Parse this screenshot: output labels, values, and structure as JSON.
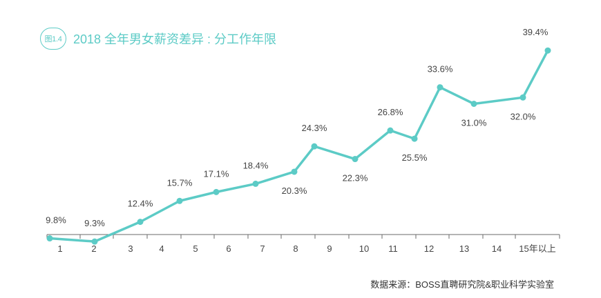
{
  "header": {
    "figure_label": "图1.4",
    "title": "2018 全年男女薪资差异 : 分工作年限"
  },
  "source": "数据来源：BOSS直聘研究院&职业科学实验室",
  "colors": {
    "accent": "#5ccbc6",
    "axis": "#6a6a6a",
    "text": "#444444"
  },
  "chart_data": {
    "type": "line",
    "title": "2018 全年男女薪资差异 : 分工作年限",
    "xlabel": "",
    "ylabel": "",
    "ylim": [
      0,
      45
    ],
    "grid": false,
    "categories": [
      "1",
      "2",
      "3",
      "4",
      "5",
      "6",
      "7",
      "8",
      "9",
      "10",
      "11",
      "12",
      "13",
      "14",
      "15年以上"
    ],
    "points": [
      {
        "x": 1,
        "y": 9.8,
        "label": "9.8%"
      },
      {
        "x": 2,
        "y": 9.3,
        "label": "9.3%"
      },
      {
        "x": 3,
        "y": 12.4,
        "label": "12.4%"
      },
      {
        "x": 4,
        "y": 15.7,
        "label": "15.7%"
      },
      {
        "x": 5,
        "y": 17.1,
        "label": "17.1%"
      },
      {
        "x": 6,
        "y": 18.4,
        "label": "18.4%"
      },
      {
        "x": 7,
        "y": 20.3,
        "label": "20.3%"
      },
      {
        "x": 8,
        "y": 24.3,
        "label": "24.3%"
      },
      {
        "x": 9,
        "y": 22.3,
        "label": "22.3%"
      },
      {
        "x": 10,
        "y": 26.8,
        "label": "26.8%"
      },
      {
        "x": 11,
        "y": 25.5,
        "label": "25.5%"
      },
      {
        "x": 12,
        "y": 33.6,
        "label": "33.6%"
      },
      {
        "x": 13,
        "y": 31.0,
        "label": "31.0%"
      },
      {
        "x": 14,
        "y": 32.0,
        "label": "32.0%"
      },
      {
        "x": 15,
        "y": 39.4,
        "label": "39.4%"
      }
    ]
  }
}
